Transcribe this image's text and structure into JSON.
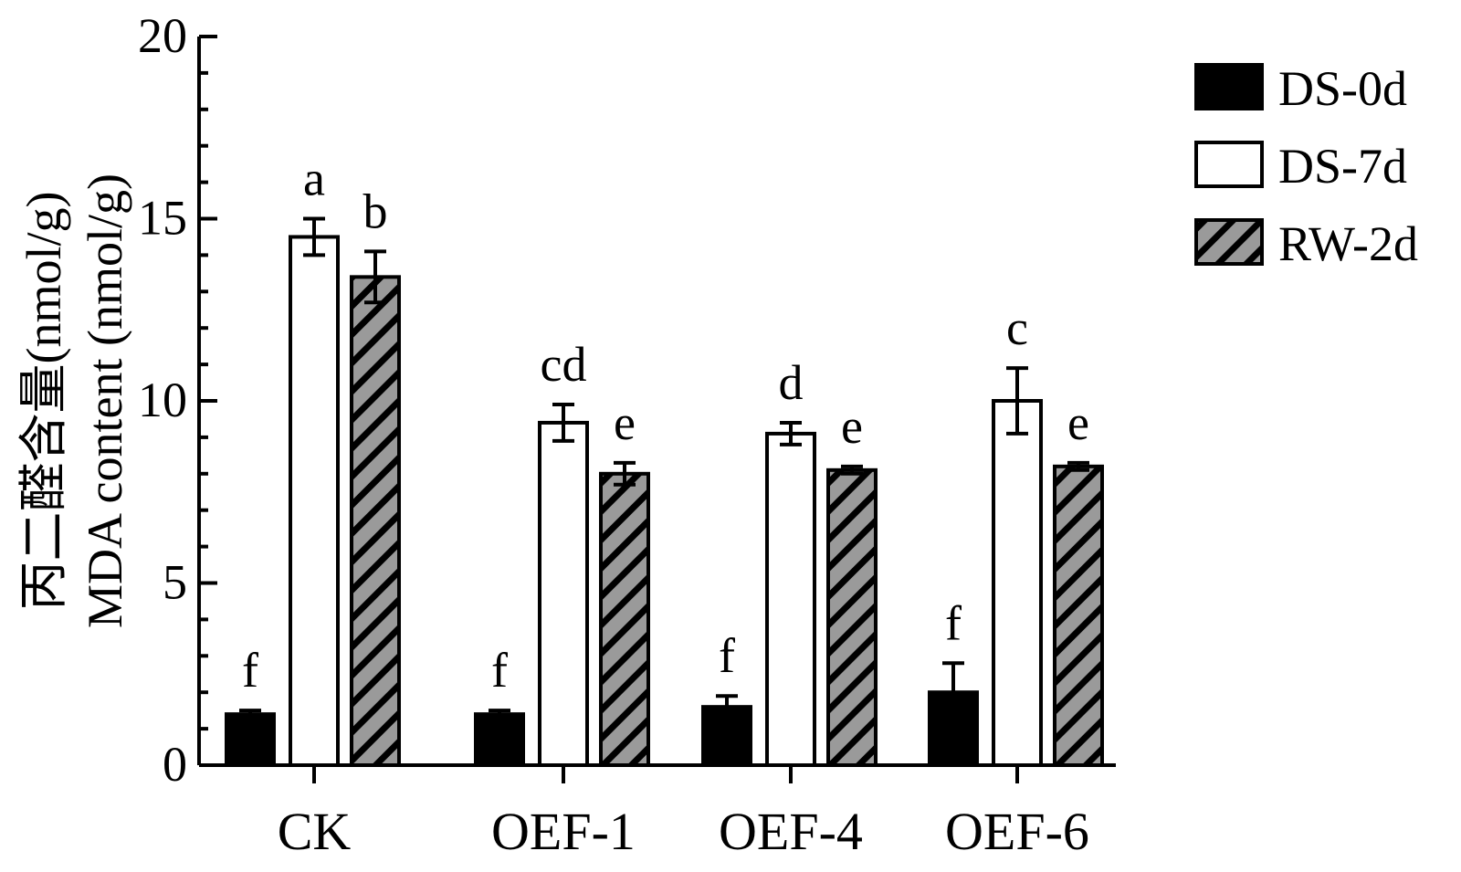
{
  "chart_data": {
    "type": "bar",
    "title": "",
    "ylabel_zh": "丙二醛含量(nmol/g)",
    "ylabel": "MDA content (nmol/g)",
    "xlabel": "",
    "ylim": [
      0,
      20
    ],
    "yticks": [
      "0",
      "5",
      "10",
      "15",
      "20"
    ],
    "categories": [
      "CK",
      "OEF-1",
      "OEF-4",
      "OEF-6"
    ],
    "legend_position": "top-right",
    "series": [
      {
        "name": "DS-0d",
        "fill": "black",
        "values": [
          1.4,
          1.4,
          1.6,
          2.0
        ],
        "errors": [
          0.1,
          0.1,
          0.3,
          0.8
        ],
        "letters": [
          "f",
          "f",
          "f",
          "f"
        ]
      },
      {
        "name": "DS-7d",
        "fill": "white",
        "values": [
          14.5,
          9.4,
          9.1,
          10.0
        ],
        "errors": [
          0.5,
          0.5,
          0.3,
          0.9
        ],
        "letters": [
          "a",
          "cd",
          "d",
          "c"
        ]
      },
      {
        "name": "RW-2d",
        "fill": "hatched-gray",
        "values": [
          13.4,
          8.0,
          8.1,
          8.2
        ],
        "errors": [
          0.7,
          0.3,
          0.1,
          0.1
        ],
        "letters": [
          "b",
          "e",
          "e",
          "e"
        ]
      }
    ]
  },
  "colors": {
    "axis": "#000000",
    "bar_dark": "#000000",
    "bar_light": "#ffffff",
    "bar_hatch_bg": "#9a9a9a",
    "bar_hatch_line": "#000000"
  }
}
